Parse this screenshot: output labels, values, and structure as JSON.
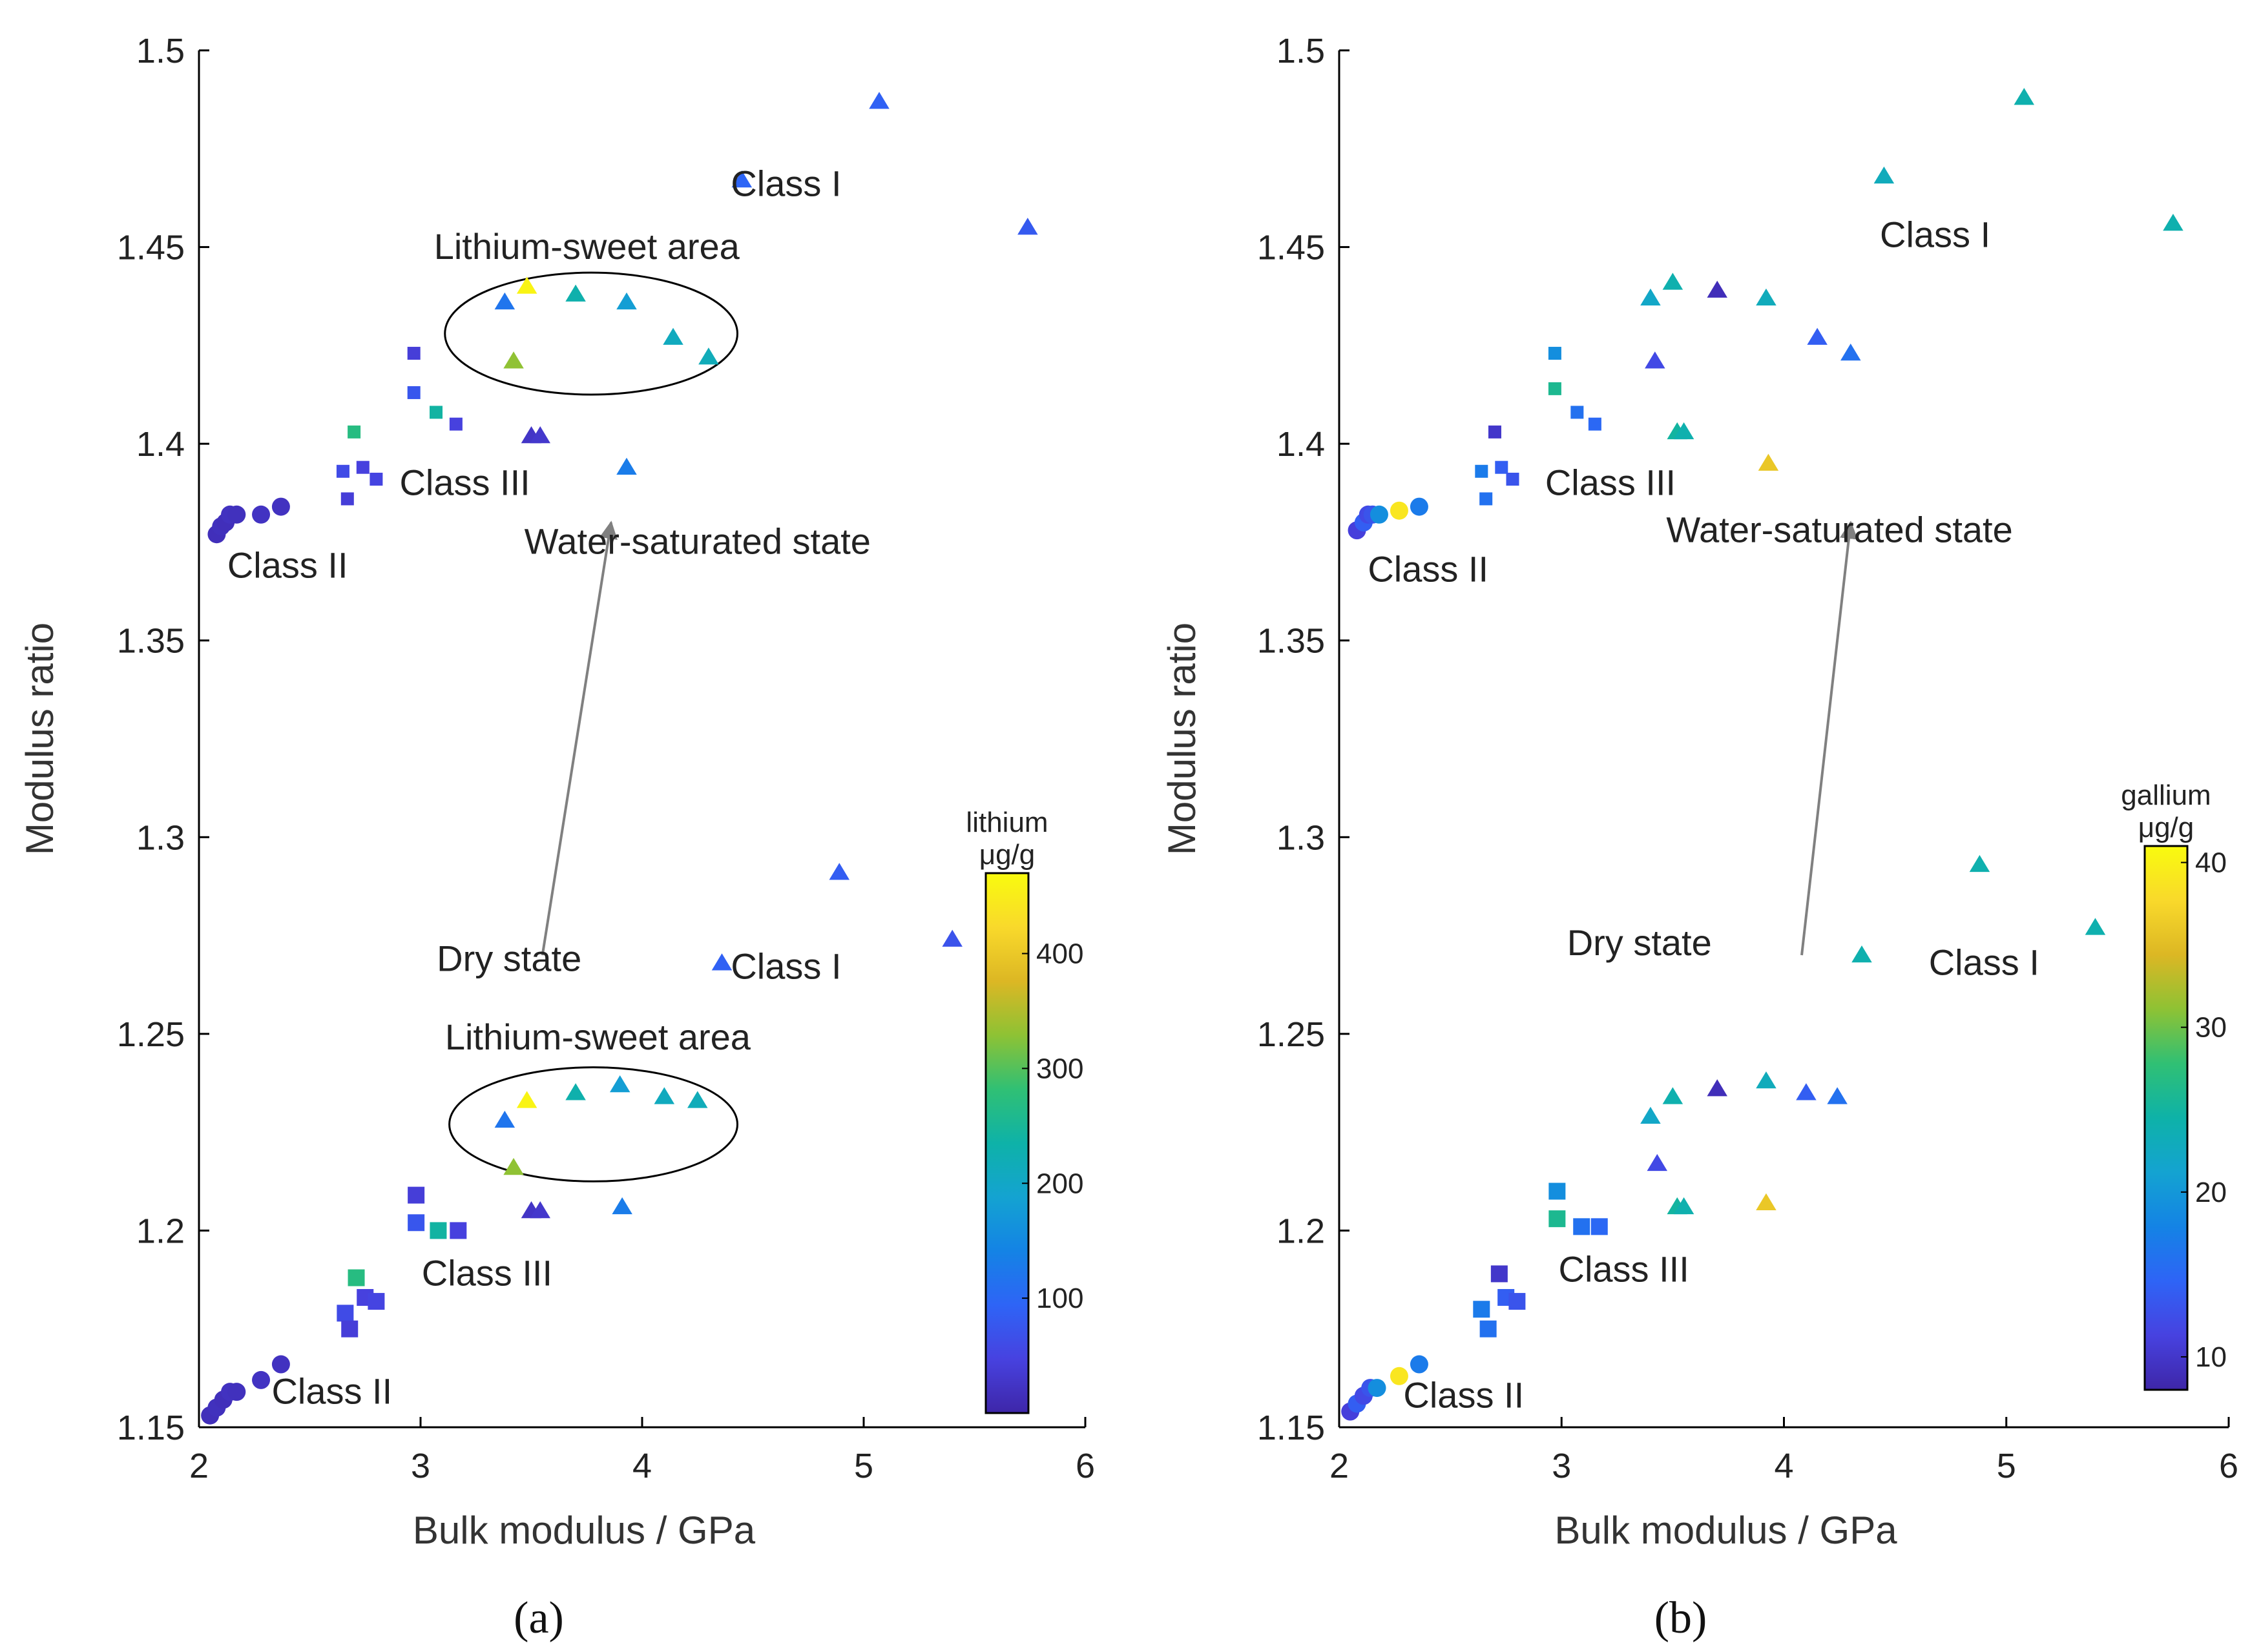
{
  "colors": {
    "parula": [
      "#3e26a8",
      "#4742e0",
      "#2e64f6",
      "#1483e5",
      "#14a3d1",
      "#0eb2a8",
      "#30c074",
      "#8ec234",
      "#dcb724",
      "#f9d92b",
      "#f9fb0e"
    ],
    "axis": "#000000",
    "arrow": "#808080"
  },
  "chart_data": [
    {
      "type": "scatter",
      "panel_label": "(a)",
      "xlabel": "Bulk modulus / GPa",
      "ylabel": "Modulus ratio",
      "xlim": [
        2,
        6
      ],
      "ylim": [
        1.15,
        1.5
      ],
      "xticks": [
        "2",
        "3",
        "4",
        "5",
        "6"
      ],
      "yticks": [
        "1.15",
        "1.2",
        "1.25",
        "1.3",
        "1.35",
        "1.4",
        "1.45",
        "1.5"
      ],
      "colorbar": {
        "title_line1": "lithium",
        "title_line2": "μg/g",
        "min": 0,
        "max": 470,
        "ticks": [
          "100",
          "200",
          "300",
          "400"
        ],
        "tick_values": [
          100,
          200,
          300,
          400
        ]
      },
      "annotations": [
        {
          "text": "Class I",
          "x": 4.65,
          "y": 1.463
        },
        {
          "text": "Lithium-sweet area",
          "x": 3.75,
          "y": 1.447
        },
        {
          "text": "Class III",
          "x": 3.2,
          "y": 1.387
        },
        {
          "text": "Water-saturated state",
          "x": 4.25,
          "y": 1.372
        },
        {
          "text": "Class II",
          "x": 2.4,
          "y": 1.366
        },
        {
          "text": "Dry state",
          "x": 3.4,
          "y": 1.266
        },
        {
          "text": "Class I",
          "x": 4.65,
          "y": 1.264
        },
        {
          "text": "Lithium-sweet area",
          "x": 3.8,
          "y": 1.246
        },
        {
          "text": "Class III",
          "x": 3.3,
          "y": 1.186
        },
        {
          "text": "Class II",
          "x": 2.6,
          "y": 1.156
        }
      ],
      "ellipses": [
        {
          "cx": 3.77,
          "cy": 1.428,
          "rx": 0.66,
          "ry": 0.0155
        },
        {
          "cx": 3.78,
          "cy": 1.227,
          "rx": 0.65,
          "ry": 0.0145
        }
      ],
      "arrow": {
        "from": [
          3.55,
          1.27
        ],
        "to": [
          3.86,
          1.38
        ]
      },
      "series": [
        {
          "name": "Class I (water-saturated)",
          "marker": "triangle",
          "points": [
            [
              5.07,
              1.487,
              90
            ],
            [
              4.45,
              1.467,
              95
            ],
            [
              5.74,
              1.455,
              80
            ],
            [
              3.38,
              1.436,
              120
            ],
            [
              3.48,
              1.44,
              460
            ],
            [
              3.7,
              1.438,
              230
            ],
            [
              3.93,
              1.436,
              180
            ],
            [
              4.14,
              1.427,
              210
            ],
            [
              4.3,
              1.422,
              215
            ],
            [
              3.42,
              1.421,
              330
            ],
            [
              3.5,
              1.402,
              25
            ],
            [
              3.54,
              1.402,
              30
            ],
            [
              3.93,
              1.394,
              130
            ],
            [
              4.89,
              1.291,
              85
            ],
            [
              4.36,
              1.268,
              90
            ],
            [
              5.4,
              1.274,
              70
            ]
          ]
        },
        {
          "name": "Class III (water-saturated)",
          "marker": "square",
          "points": [
            [
              2.97,
              1.423,
              40
            ],
            [
              2.97,
              1.413,
              75
            ],
            [
              3.07,
              1.408,
              240
            ],
            [
              3.16,
              1.405,
              45
            ],
            [
              2.7,
              1.403,
              270
            ],
            [
              2.65,
              1.393,
              60
            ],
            [
              2.74,
              1.394,
              45
            ],
            [
              2.8,
              1.391,
              50
            ],
            [
              2.67,
              1.386,
              40
            ]
          ]
        },
        {
          "name": "Class II (water-saturated)",
          "marker": "circle",
          "points": [
            [
              2.08,
              1.377,
              15
            ],
            [
              2.1,
              1.379,
              18
            ],
            [
              2.12,
              1.38,
              15
            ],
            [
              2.14,
              1.382,
              20
            ],
            [
              2.17,
              1.382,
              18
            ],
            [
              2.28,
              1.382,
              22
            ],
            [
              2.37,
              1.384,
              20
            ]
          ]
        },
        {
          "name": "Class I (dry)",
          "marker": "triangle",
          "points": [
            [
              3.38,
              1.228,
              120
            ],
            [
              3.48,
              1.233,
              460
            ],
            [
              3.7,
              1.235,
              230
            ],
            [
              3.9,
              1.237,
              180
            ],
            [
              4.1,
              1.234,
              210
            ],
            [
              4.25,
              1.233,
              215
            ],
            [
              3.42,
              1.216,
              330
            ],
            [
              3.5,
              1.205,
              25
            ],
            [
              3.54,
              1.205,
              30
            ],
            [
              3.91,
              1.206,
              130
            ]
          ]
        },
        {
          "name": "Class III (dry)",
          "marker": "square",
          "points": [
            [
              2.98,
              1.209,
              40
            ],
            [
              2.98,
              1.202,
              75
            ],
            [
              3.08,
              1.2,
              240
            ],
            [
              3.17,
              1.2,
              45
            ],
            [
              2.71,
              1.188,
              270
            ],
            [
              2.66,
              1.179,
              60
            ],
            [
              2.75,
              1.183,
              45
            ],
            [
              2.8,
              1.182,
              50
            ],
            [
              2.68,
              1.175,
              40
            ]
          ]
        },
        {
          "name": "Class II (dry)",
          "marker": "circle",
          "points": [
            [
              2.05,
              1.153,
              15
            ],
            [
              2.08,
              1.155,
              18
            ],
            [
              2.11,
              1.157,
              15
            ],
            [
              2.14,
              1.159,
              20
            ],
            [
              2.17,
              1.159,
              18
            ],
            [
              2.28,
              1.162,
              22
            ],
            [
              2.37,
              1.166,
              20
            ]
          ]
        }
      ]
    },
    {
      "type": "scatter",
      "panel_label": "(b)",
      "xlabel": "Bulk modulus / GPa",
      "ylabel": "Modulus ratio",
      "xlim": [
        2,
        6
      ],
      "ylim": [
        1.15,
        1.5
      ],
      "xticks": [
        "2",
        "3",
        "4",
        "5",
        "6"
      ],
      "yticks": [
        "1.15",
        "1.2",
        "1.25",
        "1.3",
        "1.35",
        "1.4",
        "1.45",
        "1.5"
      ],
      "colorbar": {
        "title_line1": "gallium",
        "title_line2": "μg/g",
        "min": 8,
        "max": 41,
        "ticks": [
          "10",
          "20",
          "30",
          "40"
        ],
        "tick_values": [
          10,
          20,
          30,
          40
        ]
      },
      "annotations": [
        {
          "text": "Class I",
          "x": 4.68,
          "y": 1.45
        },
        {
          "text": "Class III",
          "x": 3.22,
          "y": 1.387
        },
        {
          "text": "Water-saturated state",
          "x": 4.25,
          "y": 1.375
        },
        {
          "text": "Class II",
          "x": 2.4,
          "y": 1.365
        },
        {
          "text": "Dry state",
          "x": 3.35,
          "y": 1.27
        },
        {
          "text": "Class I",
          "x": 4.9,
          "y": 1.265
        },
        {
          "text": "Class III",
          "x": 3.28,
          "y": 1.187
        },
        {
          "text": "Class II",
          "x": 2.56,
          "y": 1.155
        }
      ],
      "arrow": {
        "from": [
          4.08,
          1.27
        ],
        "to": [
          4.3,
          1.38
        ]
      },
      "series": [
        {
          "name": "Class I (water-saturated)",
          "marker": "triangle",
          "points": [
            [
              5.08,
              1.488,
              24
            ],
            [
              4.45,
              1.468,
              23
            ],
            [
              5.75,
              1.456,
              24
            ],
            [
              3.4,
              1.437,
              22
            ],
            [
              3.5,
              1.441,
              24
            ],
            [
              3.7,
              1.439,
              9
            ],
            [
              3.92,
              1.437,
              23
            ],
            [
              4.15,
              1.427,
              14
            ],
            [
              4.3,
              1.423,
              16
            ],
            [
              3.42,
              1.421,
              12
            ],
            [
              3.52,
              1.403,
              25
            ],
            [
              3.55,
              1.403,
              24
            ],
            [
              3.93,
              1.395,
              36
            ],
            [
              4.88,
              1.293,
              24
            ],
            [
              4.35,
              1.27,
              24
            ],
            [
              5.4,
              1.277,
              24
            ]
          ]
        },
        {
          "name": "Class III (water-saturated)",
          "marker": "square",
          "points": [
            [
              2.97,
              1.423,
              19
            ],
            [
              2.97,
              1.414,
              26
            ],
            [
              3.07,
              1.408,
              16
            ],
            [
              3.15,
              1.405,
              15
            ],
            [
              2.7,
              1.403,
              10
            ],
            [
              2.64,
              1.393,
              17
            ],
            [
              2.73,
              1.394,
              14
            ],
            [
              2.78,
              1.391,
              13
            ],
            [
              2.66,
              1.386,
              16
            ]
          ]
        },
        {
          "name": "Class II (water-saturated)",
          "marker": "circle",
          "points": [
            [
              2.08,
              1.378,
              11
            ],
            [
              2.11,
              1.38,
              14
            ],
            [
              2.13,
              1.382,
              12
            ],
            [
              2.15,
              1.382,
              13
            ],
            [
              2.18,
              1.382,
              19
            ],
            [
              2.27,
              1.383,
              39
            ],
            [
              2.36,
              1.384,
              17
            ]
          ]
        },
        {
          "name": "Class I (dry)",
          "marker": "triangle",
          "points": [
            [
              3.4,
              1.229,
              22
            ],
            [
              3.5,
              1.234,
              24
            ],
            [
              3.7,
              1.236,
              9
            ],
            [
              3.92,
              1.238,
              23
            ],
            [
              4.1,
              1.235,
              14
            ],
            [
              4.24,
              1.234,
              16
            ],
            [
              3.43,
              1.217,
              12
            ],
            [
              3.52,
              1.206,
              25
            ],
            [
              3.55,
              1.206,
              24
            ],
            [
              3.92,
              1.207,
              36
            ]
          ]
        },
        {
          "name": "Class III (dry)",
          "marker": "square",
          "points": [
            [
              2.98,
              1.21,
              19
            ],
            [
              2.98,
              1.203,
              26
            ],
            [
              3.09,
              1.201,
              16
            ],
            [
              3.17,
              1.201,
              15
            ],
            [
              2.72,
              1.189,
              10
            ],
            [
              2.64,
              1.18,
              17
            ],
            [
              2.75,
              1.183,
              14
            ],
            [
              2.8,
              1.182,
              13
            ],
            [
              2.67,
              1.175,
              16
            ]
          ]
        },
        {
          "name": "Class II (dry)",
          "marker": "circle",
          "points": [
            [
              2.05,
              1.154,
              11
            ],
            [
              2.08,
              1.156,
              14
            ],
            [
              2.11,
              1.158,
              12
            ],
            [
              2.14,
              1.16,
              13
            ],
            [
              2.17,
              1.16,
              19
            ],
            [
              2.27,
              1.163,
              39
            ],
            [
              2.36,
              1.166,
              17
            ]
          ]
        }
      ]
    }
  ]
}
